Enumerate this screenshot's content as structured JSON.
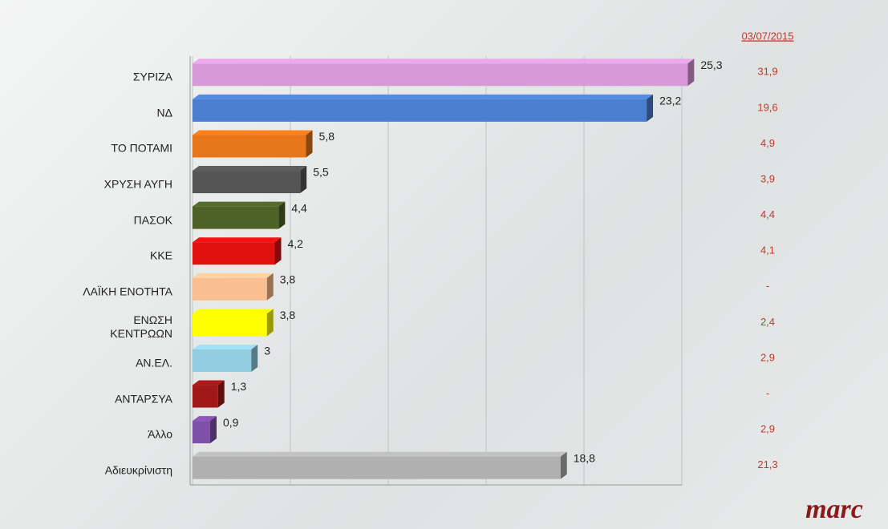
{
  "chart_data": {
    "type": "bar",
    "orientation": "horizontal",
    "categories": [
      "ΣΥΡΙΖΑ",
      "ΝΔ",
      "ΤΟ ΠΟΤΑΜΙ",
      "ΧΡΥΣΗ ΑΥΓΗ",
      "ΠΑΣΟΚ",
      "ΚΚΕ",
      "ΛΑΪΚΗ ΕΝΟΤΗΤΑ",
      "ΕΝΩΣΗ\nΚΕΝΤΡΩΩΝ",
      "ΑΝ.ΕΛ.",
      "ΑΝΤΑΡΣΥΑ",
      "Άλλο",
      "Αδιευκρίνιστη"
    ],
    "values": [
      25.3,
      23.2,
      5.8,
      5.5,
      4.4,
      4.2,
      3.8,
      3.8,
      3,
      1.3,
      0.9,
      18.8
    ],
    "value_labels": [
      "25,3",
      "23,2",
      "5,8",
      "5,5",
      "4,4",
      "4,2",
      "3,8",
      "3,8",
      "3",
      "1,3",
      "0,9",
      "18,8"
    ],
    "colors": [
      "#d899d8",
      "#4a7fd0",
      "#e8761a",
      "#555555",
      "#4e6228",
      "#e01010",
      "#f9bf90",
      "#ffff00",
      "#92cde0",
      "#a01818",
      "#8050a8",
      "#b0b0b0"
    ],
    "xlim": [
      0,
      25
    ],
    "xticks": [
      0,
      5,
      10,
      15,
      20,
      25
    ],
    "grid": true,
    "comparison": {
      "name": "03/07/2015",
      "values": [
        31.9,
        19.6,
        4.9,
        3.9,
        4.4,
        4.1,
        null,
        2.4,
        2.9,
        null,
        2.9,
        21.3
      ],
      "value_labels": [
        "31,9",
        "19,6",
        "4,9",
        "3,9",
        "4,4",
        "4,1",
        "-",
        "2,4",
        "2,9",
        "-",
        "2,9",
        "21,3"
      ]
    },
    "logo": "marc"
  }
}
